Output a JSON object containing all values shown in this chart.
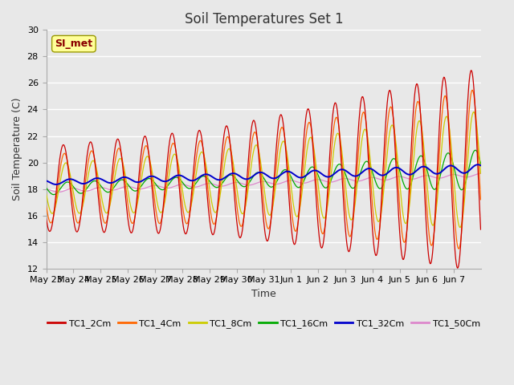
{
  "title": "Soil Temperatures Set 1",
  "xlabel": "Time",
  "ylabel": "Soil Temperature (C)",
  "ylim": [
    12,
    30
  ],
  "yticks": [
    12,
    14,
    16,
    18,
    20,
    22,
    24,
    26,
    28,
    30
  ],
  "annotation": "SI_met",
  "bg_color": "#e0e0e0",
  "plot_bg_color": "#e8e8e8",
  "series_colors": {
    "TC1_2Cm": "#cc0000",
    "TC1_4Cm": "#ff6600",
    "TC1_8Cm": "#cccc00",
    "TC1_16Cm": "#00aa00",
    "TC1_32Cm": "#0000cc",
    "TC1_50Cm": "#dd88cc"
  },
  "tick_labels": [
    "May 23",
    "May 24",
    "May 25",
    "May 26",
    "May 27",
    "May 28",
    "May 29",
    "May 30",
    "May 31",
    "Jun 1",
    "Jun 2",
    "Jun 3",
    "Jun 4",
    "Jun 5",
    "Jun 6",
    "Jun 7"
  ],
  "n_days": 16,
  "pts_per_day": 48
}
